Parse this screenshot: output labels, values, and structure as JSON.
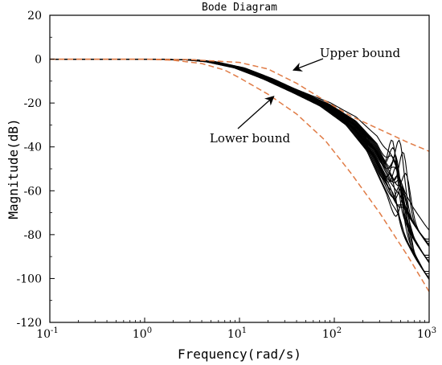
{
  "chart_data": {
    "type": "line",
    "title": "Bode Diagram",
    "xlabel": "Frequency(rad/s)",
    "ylabel": "Magnitude(dB)",
    "x_scale": "log",
    "xlim": [
      0.1,
      1000
    ],
    "ylim": [
      -120,
      20
    ],
    "x_ticks": [
      {
        "value": 0.1,
        "base": "10",
        "exp": "-1"
      },
      {
        "value": 1,
        "base": "10",
        "exp": "0"
      },
      {
        "value": 10,
        "base": "10",
        "exp": "1"
      },
      {
        "value": 100,
        "base": "10",
        "exp": "2"
      },
      {
        "value": 1000,
        "base": "10",
        "exp": "3"
      }
    ],
    "y_ticks": [
      20,
      0,
      -20,
      -40,
      -60,
      -80,
      -100,
      -120
    ],
    "grid": false,
    "colors": {
      "bounds": "#e07b45",
      "curves": "#000000"
    },
    "bounds": [
      {
        "label": "Upper bound",
        "style": "dashed",
        "x": [
          0.1,
          1,
          3,
          10,
          20,
          40,
          80,
          150,
          300,
          600,
          1000
        ],
        "y": [
          0,
          0,
          -0.2,
          -1.5,
          -4.5,
          -11,
          -19,
          -26,
          -32,
          -38,
          -42
        ]
      },
      {
        "label": "Lower bound",
        "style": "dashed",
        "x": [
          0.1,
          1,
          2,
          4,
          7,
          10,
          20,
          40,
          80,
          150,
          300,
          600,
          1000
        ],
        "y": [
          0,
          0,
          -0.5,
          -2,
          -5,
          -8.5,
          -16,
          -25,
          -37,
          -52,
          -70,
          -90,
          -106
        ]
      }
    ],
    "family_nominal": {
      "description": "cluster of closely overlapping black response curves",
      "x": [
        0.1,
        1,
        3,
        5,
        10,
        20,
        40,
        80,
        150,
        250,
        400,
        500,
        600,
        800,
        1000
      ],
      "y": [
        0,
        0,
        -0.3,
        -1.2,
        -4,
        -9,
        -15,
        -21,
        -29,
        -40,
        -58,
        -70,
        -77,
        -86,
        -92
      ]
    },
    "family_count": 22,
    "annotations": [
      {
        "text": "Upper bound",
        "arrow_to": {
          "x": 37,
          "y": -5
        }
      },
      {
        "text": "Lower bound",
        "arrow_to": {
          "x": 23,
          "y": -17
        }
      }
    ]
  }
}
